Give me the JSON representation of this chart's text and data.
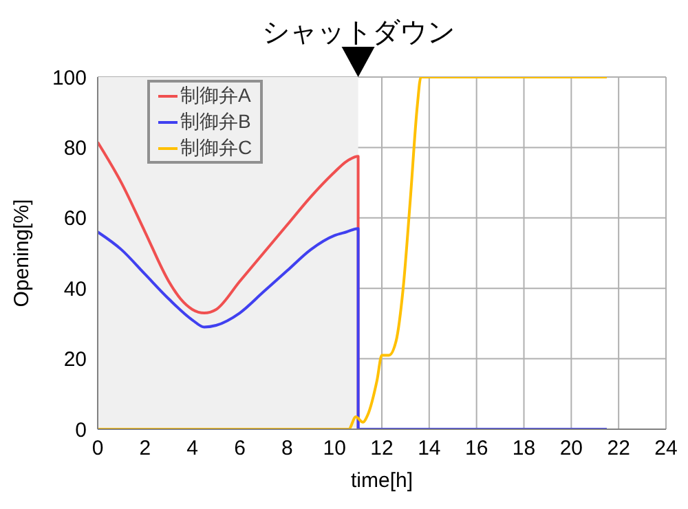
{
  "chart_data": {
    "type": "line",
    "xlabel": "time[h]",
    "ylabel": "Opening[%]",
    "xlim": [
      0,
      24
    ],
    "xticks": [
      0,
      2,
      4,
      6,
      8,
      10,
      12,
      14,
      16,
      18,
      20,
      22,
      24
    ],
    "ylim": [
      0,
      100
    ],
    "yticks": [
      0,
      20,
      40,
      60,
      80,
      100
    ],
    "grid": true,
    "legend": "top left",
    "marker": "none",
    "line_style": "solid",
    "bands": [
      {
        "axis": "x",
        "from": 0,
        "to": 11,
        "color": "#f0f0f0"
      }
    ],
    "annotations": [
      {
        "text": "シャットダウン",
        "x": 11,
        "y": 100
      }
    ],
    "series": [
      {
        "name": "制御弁A",
        "color": "#f05050",
        "x": [
          0,
          1,
          2,
          3,
          3.5,
          4,
          4.5,
          5,
          6,
          7,
          8,
          9,
          10,
          10.5,
          11,
          11
        ],
        "values": [
          81.5,
          70,
          56,
          42,
          37,
          34,
          33,
          34,
          42,
          50,
          58,
          66,
          73,
          76,
          77.5,
          0
        ]
      },
      {
        "name": "制御弁B",
        "color": "#4040f0",
        "x": [
          0,
          1,
          2,
          3,
          4,
          4.5,
          5,
          6,
          7,
          8,
          9,
          10,
          10.5,
          11,
          11,
          21.5
        ],
        "values": [
          56,
          51,
          44,
          37,
          31,
          29,
          29.5,
          33,
          39,
          45,
          51,
          55,
          56,
          57,
          0,
          0
        ]
      },
      {
        "name": "制御弁C",
        "color": "#ffc000",
        "x": [
          0,
          10.6,
          10.9,
          11.2,
          11.4,
          11.8,
          12,
          12.3,
          12.6,
          12.9,
          13.2,
          13.5,
          13.65,
          21.5
        ],
        "values": [
          0,
          0,
          3.5,
          2,
          4,
          14,
          21,
          21,
          25,
          40,
          65,
          92,
          100,
          100
        ]
      }
    ]
  }
}
